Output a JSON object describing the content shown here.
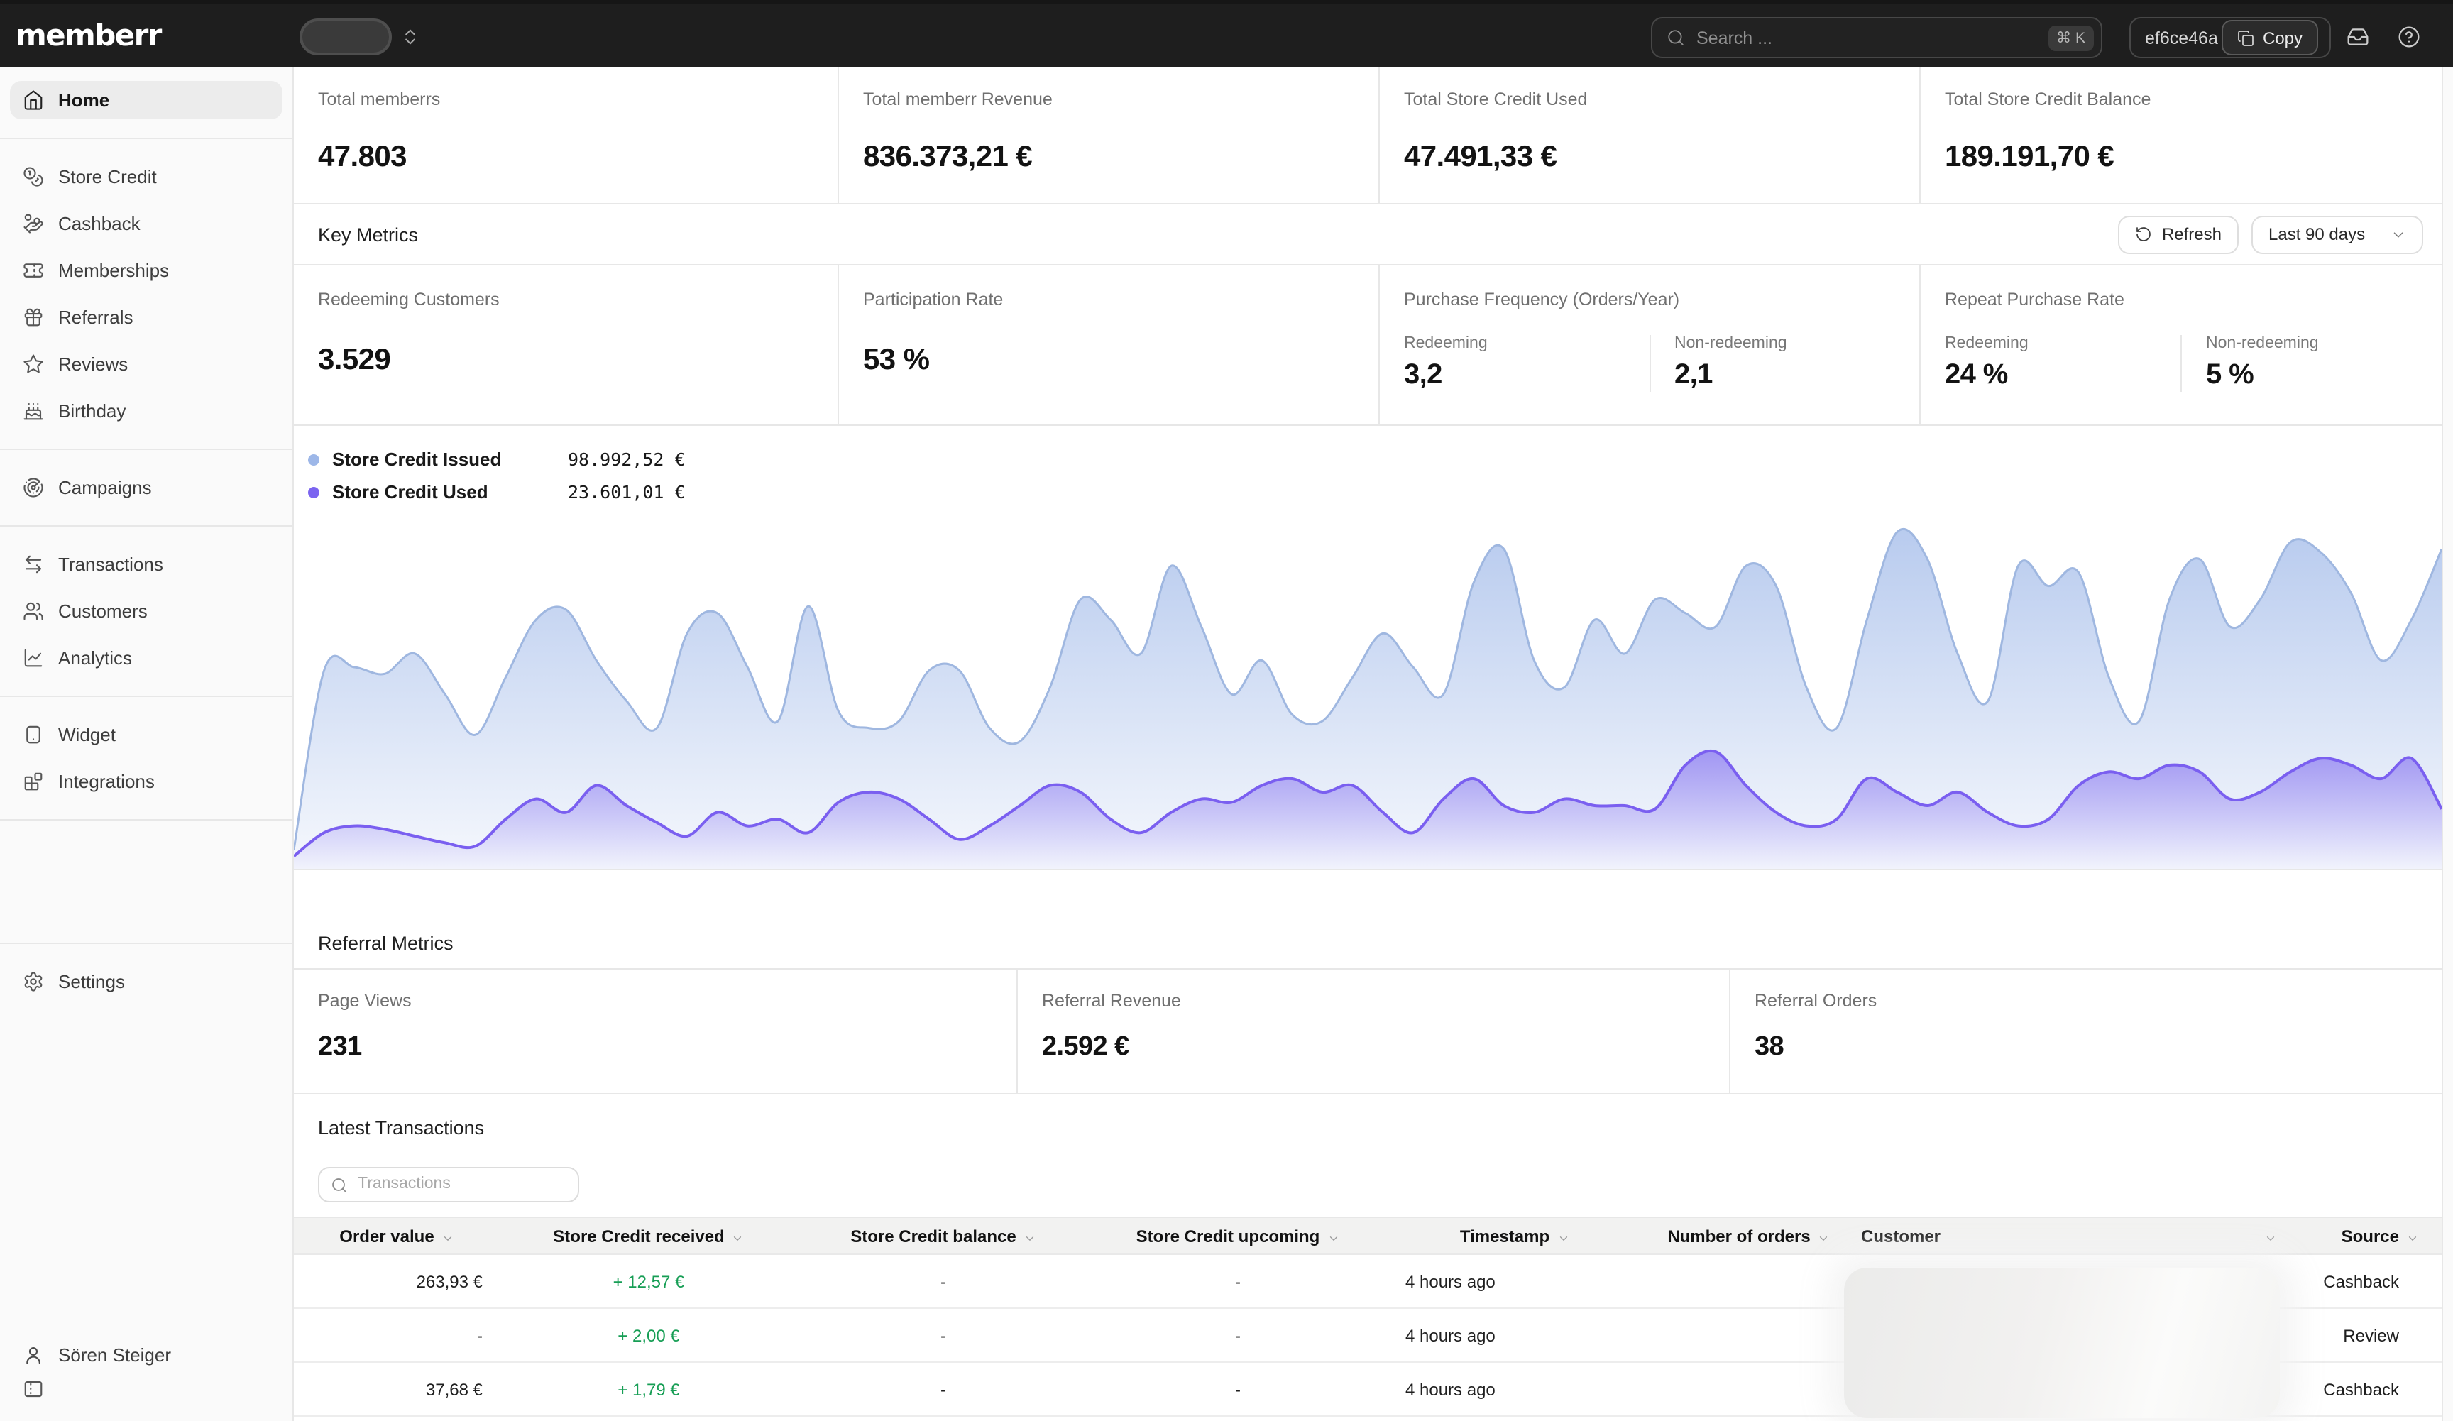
{
  "topbar": {
    "logo": "memberr",
    "search_placeholder": "Search ...",
    "search_shortcut": "⌘ K",
    "api_key": "ef6ce46a",
    "copy_label": "Copy"
  },
  "sidebar": {
    "groups": [
      {
        "items": [
          {
            "label": "Home",
            "icon": "home",
            "active": true
          }
        ]
      },
      {
        "items": [
          {
            "label": "Store Credit",
            "icon": "coins"
          },
          {
            "label": "Cashback",
            "icon": "hand-coins"
          },
          {
            "label": "Memberships",
            "icon": "ticket"
          },
          {
            "label": "Referrals",
            "icon": "gift"
          },
          {
            "label": "Reviews",
            "icon": "star"
          },
          {
            "label": "Birthday",
            "icon": "cake"
          }
        ]
      },
      {
        "items": [
          {
            "label": "Campaigns",
            "icon": "radar"
          }
        ]
      },
      {
        "items": [
          {
            "label": "Transactions",
            "icon": "arrows-left-right"
          },
          {
            "label": "Customers",
            "icon": "users"
          },
          {
            "label": "Analytics",
            "icon": "chart-line"
          }
        ]
      },
      {
        "items": [
          {
            "label": "Widget",
            "icon": "widget"
          },
          {
            "label": "Integrations",
            "icon": "blocks"
          }
        ]
      },
      {
        "items": [
          {
            "label": "Settings",
            "icon": "gear"
          }
        ]
      }
    ],
    "user": "Sören Steiger"
  },
  "stats": [
    {
      "label": "Total memberrs",
      "value": "47.803"
    },
    {
      "label": "Total memberr Revenue",
      "value": "836.373,21 €"
    },
    {
      "label": "Total Store Credit Used",
      "value": "47.491,33 €"
    },
    {
      "label": "Total Store Credit Balance",
      "value": "189.191,70 €"
    }
  ],
  "key_metrics": {
    "title": "Key Metrics",
    "refresh_label": "Refresh",
    "range_label": "Last 90 days",
    "cards": [
      {
        "label": "Redeeming Customers",
        "value": "3.529"
      },
      {
        "label": "Participation Rate",
        "value": "53 %"
      },
      {
        "label": "Purchase Frequency (Orders/Year)",
        "sub": [
          {
            "label": "Redeeming",
            "value": "3,2"
          },
          {
            "label": "Non-redeeming",
            "value": "2,1"
          }
        ]
      },
      {
        "label": "Repeat Purchase Rate",
        "sub": [
          {
            "label": "Redeeming",
            "value": "24 %"
          },
          {
            "label": "Non-redeeming",
            "value": "5 %"
          }
        ]
      }
    ]
  },
  "chart_data": {
    "type": "area",
    "legend_position": "top-left",
    "grid": false,
    "axes_labeled": false,
    "series": [
      {
        "name": "Store Credit Issued",
        "total": "98.992,52 €",
        "color": "#9db7e8",
        "stroke": "#9fb7e0",
        "values": [
          4,
          57,
          58,
          56,
          62,
          50,
          38,
          55,
          72,
          75,
          60,
          48,
          40,
          68,
          74,
          58,
          42,
          76,
          45,
          40,
          42,
          57,
          57,
          40,
          36,
          52,
          78,
          72,
          62,
          88,
          70,
          50,
          60,
          44,
          42,
          55,
          68,
          58,
          50,
          83,
          93,
          60,
          52,
          72,
          62,
          78,
          74,
          70,
          88,
          82,
          52,
          40,
          72,
          98,
          90,
          62,
          48,
          88,
          82,
          86,
          55,
          42,
          78,
          90,
          70,
          78,
          95,
          92,
          80,
          60,
          72,
          93
        ]
      },
      {
        "name": "Store Credit Used",
        "total": "23.601,01 €",
        "color": "#7b64f0",
        "stroke": "#7a5ff0",
        "values": [
          2,
          9,
          11,
          10,
          8,
          6,
          5,
          13,
          19,
          15,
          23,
          17,
          12,
          8,
          15,
          11,
          13,
          9,
          18,
          21,
          19,
          13,
          7,
          11,
          17,
          23,
          21,
          13,
          9,
          15,
          19,
          18,
          23,
          25,
          21,
          23,
          15,
          9,
          19,
          25,
          17,
          15,
          19,
          17,
          17,
          16,
          29,
          33,
          23,
          15,
          11,
          13,
          25,
          21,
          17,
          21,
          15,
          11,
          13,
          23,
          27,
          25,
          29,
          27,
          19,
          21,
          27,
          31,
          29,
          25,
          31,
          16
        ]
      }
    ]
  },
  "referral": {
    "title": "Referral Metrics",
    "cards": [
      {
        "label": "Page Views",
        "value": "231"
      },
      {
        "label": "Referral Revenue",
        "value": "2.592 €"
      },
      {
        "label": "Referral Orders",
        "value": "38"
      }
    ]
  },
  "transactions": {
    "title": "Latest Transactions",
    "search_placeholder": "Transactions",
    "columns": [
      "Order value",
      "Store Credit received",
      "Store Credit balance",
      "Store Credit upcoming",
      "Timestamp",
      "Number of orders",
      "Customer",
      "Source"
    ],
    "rows": [
      {
        "order_value": "263,93 €",
        "store_credit_received": "+ 12,57 €",
        "store_credit_balance": "-",
        "store_credit_upcoming": "-",
        "timestamp": "4 hours ago",
        "number_of_orders": "",
        "customer": "",
        "source": "Cashback"
      },
      {
        "order_value": "-",
        "store_credit_received": "+ 2,00 €",
        "store_credit_balance": "-",
        "store_credit_upcoming": "-",
        "timestamp": "4 hours ago",
        "number_of_orders": "",
        "customer": "",
        "source": "Review"
      },
      {
        "order_value": "37,68 €",
        "store_credit_received": "+ 1,79 €",
        "store_credit_balance": "-",
        "store_credit_upcoming": "-",
        "timestamp": "4 hours ago",
        "number_of_orders": "",
        "customer": "",
        "source": "Cashback"
      }
    ]
  }
}
